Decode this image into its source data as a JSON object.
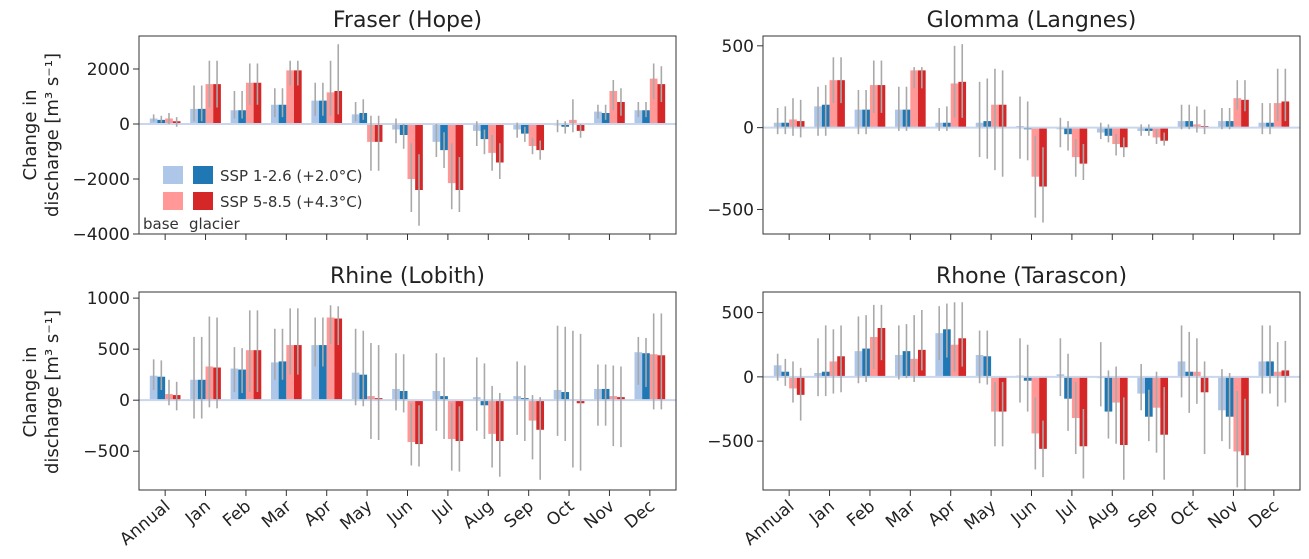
{
  "colors": {
    "ssp126_base": "#aec7e8",
    "ssp126_glacier": "#1f77b4",
    "ssp585_base": "#ff9896",
    "ssp585_glacier": "#d62728",
    "errorbar": "#a9a9a9",
    "zero_line": "#c9d6ec"
  },
  "legend": {
    "series": [
      "SSP 1-2.6 (+2.0°C)",
      "SSP 5-8.5 (+4.3°C)"
    ],
    "base_label": "base",
    "glacier_label": "glacier"
  },
  "y_axis_label": [
    "Change in",
    "discharge [m³ s⁻¹]"
  ],
  "chart_data": [
    {
      "type": "bar",
      "title": "Fraser (Hope)",
      "categories": [
        "Annual",
        "Jan",
        "Feb",
        "Mar",
        "Apr",
        "May",
        "Jun",
        "Jul",
        "Aug",
        "Sep",
        "Oct",
        "Nov",
        "Dec"
      ],
      "ylim": [
        -4000,
        3200
      ],
      "yticks": [
        -4000,
        -2000,
        0,
        2000
      ],
      "ytick_labels": [
        "−4000",
        "−2000",
        "0",
        "2000"
      ],
      "show_xticklabels": false,
      "series": [
        {
          "name": "SSP 1-2.6 (+2.0°C) base",
          "values": [
            200,
            550,
            500,
            700,
            850,
            350,
            -200,
            -650,
            -250,
            -200,
            -50,
            450,
            500
          ],
          "err_low": [
            100,
            100,
            200,
            250,
            300,
            100,
            -700,
            -1200,
            -800,
            -500,
            -300,
            200,
            250
          ],
          "err_high": [
            350,
            1400,
            1200,
            1300,
            1500,
            800,
            200,
            0,
            100,
            50,
            150,
            700,
            800
          ]
        },
        {
          "name": "SSP 1-2.6 (+2.0°C) glacier",
          "values": [
            150,
            550,
            500,
            700,
            850,
            400,
            -400,
            -950,
            -550,
            -350,
            -100,
            400,
            500
          ],
          "err_low": [
            50,
            100,
            200,
            250,
            300,
            150,
            -900,
            -1600,
            -1100,
            -650,
            -350,
            150,
            250
          ],
          "err_high": [
            300,
            1400,
            1200,
            1300,
            1500,
            900,
            0,
            -300,
            -200,
            -100,
            100,
            700,
            800
          ]
        },
        {
          "name": "SSP 5-8.5 (+4.3°C) base",
          "values": [
            200,
            1450,
            1500,
            1950,
            1150,
            -650,
            -2000,
            -2150,
            -1050,
            -800,
            150,
            1200,
            1650
          ],
          "err_low": [
            0,
            600,
            700,
            1400,
            300,
            -1700,
            -3200,
            -3100,
            -1700,
            -1100,
            -300,
            500,
            900
          ],
          "err_high": [
            400,
            2300,
            2200,
            2300,
            2300,
            300,
            -700,
            -700,
            -400,
            -500,
            900,
            1600,
            2200
          ]
        },
        {
          "name": "SSP 5-8.5 (+4.3°C) glacier",
          "values": [
            100,
            1450,
            1500,
            1950,
            1200,
            -650,
            -2400,
            -2400,
            -1400,
            -950,
            -250,
            800,
            1450
          ],
          "err_low": [
            -100,
            600,
            700,
            1400,
            350,
            -1700,
            -3700,
            -3200,
            -2000,
            -1300,
            -500,
            300,
            800
          ],
          "err_high": [
            250,
            2300,
            2200,
            2300,
            2900,
            300,
            -1100,
            -1200,
            -700,
            -600,
            0,
            1300,
            2100
          ]
        }
      ]
    },
    {
      "type": "bar",
      "title": "Glomma (Langnes)",
      "categories": [
        "Annual",
        "Jan",
        "Feb",
        "Mar",
        "Apr",
        "May",
        "Jun",
        "Jul",
        "Aug",
        "Sep",
        "Oct",
        "Nov",
        "Dec"
      ],
      "ylim": [
        -650,
        560
      ],
      "yticks": [
        -500,
        0,
        500
      ],
      "ytick_labels": [
        "−500",
        "0",
        "500"
      ],
      "show_xticklabels": false,
      "series": [
        {
          "name": "SSP 1-2.6 (+2.0°C) base",
          "values": [
            30,
            130,
            110,
            110,
            30,
            30,
            10,
            -10,
            -30,
            -20,
            40,
            40,
            30
          ],
          "err_low": [
            -40,
            -50,
            -40,
            -20,
            -20,
            -180,
            -190,
            -120,
            -70,
            -50,
            -10,
            -10,
            -40
          ],
          "err_high": [
            120,
            250,
            230,
            250,
            120,
            280,
            190,
            60,
            30,
            20,
            140,
            120,
            150
          ]
        },
        {
          "name": "SSP 1-2.6 (+2.0°C) glacier",
          "values": [
            30,
            140,
            110,
            110,
            30,
            40,
            -10,
            -40,
            -50,
            -20,
            40,
            40,
            30
          ],
          "err_low": [
            -40,
            -50,
            -40,
            -20,
            -20,
            -190,
            -200,
            -140,
            -90,
            -50,
            -10,
            -10,
            -40
          ],
          "err_high": [
            130,
            260,
            230,
            250,
            130,
            300,
            160,
            40,
            20,
            20,
            140,
            120,
            150
          ]
        },
        {
          "name": "SSP 5-8.5 (+4.3°C) base",
          "values": [
            50,
            290,
            260,
            350,
            270,
            140,
            -300,
            -180,
            -100,
            -60,
            20,
            180,
            150
          ],
          "err_low": [
            -50,
            150,
            90,
            240,
            60,
            -260,
            -550,
            -300,
            -170,
            -100,
            -30,
            110,
            40
          ],
          "err_high": [
            180,
            430,
            410,
            370,
            500,
            360,
            -50,
            -70,
            -40,
            -10,
            130,
            290,
            360
          ]
        },
        {
          "name": "SSP 5-8.5 (+4.3°C) glacier",
          "values": [
            40,
            290,
            260,
            350,
            280,
            140,
            -360,
            -220,
            -120,
            -80,
            10,
            170,
            160
          ],
          "err_low": [
            -60,
            150,
            90,
            240,
            60,
            -300,
            -580,
            -320,
            -180,
            -110,
            -40,
            100,
            40
          ],
          "err_high": [
            170,
            430,
            410,
            370,
            510,
            350,
            -120,
            -100,
            -60,
            -30,
            110,
            290,
            360
          ]
        }
      ]
    },
    {
      "type": "bar",
      "title": "Rhine (Lobith)",
      "categories": [
        "Annual",
        "Jan",
        "Feb",
        "Mar",
        "Apr",
        "May",
        "Jun",
        "Jul",
        "Aug",
        "Sep",
        "Oct",
        "Nov",
        "Dec"
      ],
      "ylim": [
        -880,
        1060
      ],
      "yticks": [
        -500,
        0,
        500,
        1000
      ],
      "ytick_labels": [
        "−500",
        "0",
        "500",
        "1000"
      ],
      "show_xticklabels": true,
      "series": [
        {
          "name": "SSP 1-2.6 (+2.0°C) base",
          "values": [
            240,
            200,
            310,
            370,
            540,
            270,
            110,
            90,
            30,
            40,
            100,
            110,
            470
          ],
          "err_low": [
            100,
            -180,
            80,
            200,
            330,
            -50,
            -100,
            -300,
            -300,
            -340,
            -350,
            -250,
            150
          ],
          "err_high": [
            400,
            620,
            520,
            700,
            810,
            700,
            460,
            460,
            420,
            380,
            730,
            350,
            620
          ]
        },
        {
          "name": "SSP 1-2.6 (+2.0°C) glacier",
          "values": [
            230,
            200,
            300,
            380,
            540,
            250,
            90,
            40,
            -50,
            20,
            80,
            110,
            460
          ],
          "err_low": [
            100,
            -180,
            70,
            200,
            330,
            -60,
            -120,
            -380,
            -380,
            -400,
            -400,
            -250,
            130
          ],
          "err_high": [
            390,
            620,
            510,
            700,
            810,
            680,
            450,
            420,
            360,
            340,
            720,
            350,
            610
          ]
        },
        {
          "name": "SSP 5-8.5 (+4.3°C) base",
          "values": [
            60,
            330,
            490,
            540,
            810,
            40,
            -410,
            -380,
            -330,
            -200,
            10,
            40,
            450
          ],
          "err_low": [
            -50,
            -70,
            80,
            250,
            550,
            -380,
            -640,
            -690,
            -660,
            -580,
            -660,
            -450,
            -90
          ],
          "err_high": [
            200,
            820,
            880,
            900,
            930,
            560,
            -30,
            -30,
            140,
            50,
            680,
            340,
            850
          ]
        },
        {
          "name": "SSP 5-8.5 (+4.3°C) glacier",
          "values": [
            50,
            320,
            490,
            540,
            800,
            20,
            -430,
            -400,
            -400,
            -290,
            -30,
            30,
            440
          ],
          "err_low": [
            -100,
            -80,
            80,
            250,
            540,
            -390,
            -650,
            -700,
            -750,
            -780,
            -690,
            -460,
            -90
          ],
          "err_high": [
            180,
            810,
            880,
            900,
            920,
            540,
            -50,
            -60,
            70,
            30,
            650,
            330,
            850
          ]
        }
      ]
    },
    {
      "type": "bar",
      "title": "Rhone (Tarascon)",
      "categories": [
        "Annual",
        "Jan",
        "Feb",
        "Mar",
        "Apr",
        "May",
        "Jun",
        "Jul",
        "Aug",
        "Sep",
        "Oct",
        "Nov",
        "Dec"
      ],
      "ylim": [
        -880,
        660
      ],
      "yticks": [
        -500,
        0,
        500
      ],
      "ytick_labels": [
        "−500",
        "0",
        "500"
      ],
      "show_xticklabels": true,
      "series": [
        {
          "name": "SSP 1-2.6 (+2.0°C) base",
          "values": [
            90,
            30,
            200,
            170,
            340,
            170,
            10,
            20,
            -10,
            -130,
            120,
            -260,
            120
          ],
          "err_low": [
            -30,
            -150,
            -50,
            -20,
            130,
            -50,
            -200,
            -150,
            -230,
            -260,
            -160,
            -500,
            -130
          ],
          "err_high": [
            180,
            300,
            470,
            400,
            550,
            360,
            300,
            300,
            270,
            100,
            400,
            60,
            400
          ]
        },
        {
          "name": "SSP 1-2.6 (+2.0°C) glacier",
          "values": [
            40,
            40,
            220,
            200,
            370,
            160,
            -30,
            -170,
            -270,
            -310,
            40,
            -310,
            120
          ],
          "err_low": [
            -70,
            -150,
            -40,
            -10,
            150,
            -60,
            -270,
            -420,
            -480,
            -500,
            -280,
            -560,
            -130
          ],
          "err_high": [
            140,
            400,
            480,
            410,
            570,
            360,
            250,
            180,
            50,
            -100,
            350,
            30,
            400
          ]
        },
        {
          "name": "SSP 5-8.5 (+4.3°C) base",
          "values": [
            -90,
            120,
            310,
            140,
            250,
            -270,
            -440,
            -320,
            -200,
            -240,
            40,
            -580,
            40
          ],
          "err_low": [
            -200,
            -130,
            60,
            -40,
            40,
            -540,
            -720,
            -600,
            -520,
            -590,
            -210,
            -860,
            -230
          ],
          "err_high": [
            120,
            370,
            560,
            480,
            580,
            -40,
            -160,
            -40,
            80,
            40,
            300,
            -110,
            270
          ]
        },
        {
          "name": "SSP 5-8.5 (+4.3°C) glacier",
          "values": [
            -140,
            160,
            380,
            210,
            300,
            -270,
            -560,
            -540,
            -530,
            -450,
            -120,
            -610,
            50
          ],
          "err_low": [
            -340,
            -120,
            130,
            50,
            80,
            -540,
            -780,
            -790,
            -800,
            -800,
            -600,
            -880,
            -200
          ],
          "err_high": [
            70,
            400,
            560,
            520,
            580,
            -40,
            -340,
            -250,
            -160,
            -80,
            120,
            -170,
            280
          ]
        }
      ]
    }
  ]
}
